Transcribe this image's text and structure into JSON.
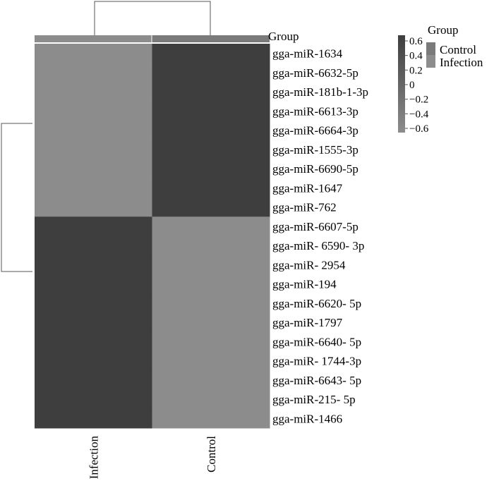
{
  "chart_data": {
    "type": "heatmap",
    "columns": [
      "Infection",
      "Control"
    ],
    "rows": [
      "gga-miR-1634",
      "gga-miR-6632-5p",
      "gga-miR-181b-1-3p",
      "gga-miR-6613-3p",
      "gga-miR-6664-3p",
      "gga-miR-1555-3p",
      "gga-miR-6690-5p",
      "gga-miR-1647",
      "gga-miR-762",
      "gga-miR-6607-5p",
      "gga-miR- 6590- 3p",
      "gga-miR- 2954",
      "gga-miR-194",
      "gga-miR-6620- 5p",
      "gga-miR-1797",
      "gga-miR-6640- 5p",
      "gga-miR- 1744-3p",
      "gga-miR-6643- 5p",
      "gga-miR-215- 5p",
      "gga-miR-1466"
    ],
    "values": [
      [
        -0.6,
        0.6
      ],
      [
        -0.6,
        0.6
      ],
      [
        -0.6,
        0.6
      ],
      [
        -0.6,
        0.6
      ],
      [
        -0.6,
        0.6
      ],
      [
        -0.6,
        0.6
      ],
      [
        -0.6,
        0.6
      ],
      [
        -0.6,
        0.6
      ],
      [
        -0.6,
        0.6
      ],
      [
        0.6,
        -0.6
      ],
      [
        0.6,
        -0.6
      ],
      [
        0.6,
        -0.6
      ],
      [
        0.6,
        -0.6
      ],
      [
        0.6,
        -0.6
      ],
      [
        0.6,
        -0.6
      ],
      [
        0.6,
        -0.6
      ],
      [
        0.6,
        -0.6
      ],
      [
        0.6,
        -0.6
      ],
      [
        0.6,
        -0.6
      ],
      [
        0.6,
        -0.6
      ]
    ],
    "annotation_label": "Group",
    "annotation_values": [
      "Infection",
      "Control"
    ],
    "color_scale": {
      "ticks": [
        0.6,
        0.4,
        0.2,
        0,
        -0.2,
        -0.4,
        -0.6
      ],
      "tick_labels": [
        "0.6",
        "0.4",
        "0.2",
        "0",
        "−0.2",
        "−0.4",
        "−0.6"
      ],
      "range": [
        -0.6,
        0.6
      ],
      "low_color": "#8c8c8c",
      "high_color": "#3e3e3e"
    },
    "group_legend": {
      "title": "Group",
      "items": [
        {
          "label": "Control",
          "color": "#7a7a7a"
        },
        {
          "label": "Infection",
          "color": "#8c8c8c"
        }
      ]
    },
    "row_dendrogram": true,
    "column_dendrogram": true,
    "legend_position": "top-right"
  }
}
